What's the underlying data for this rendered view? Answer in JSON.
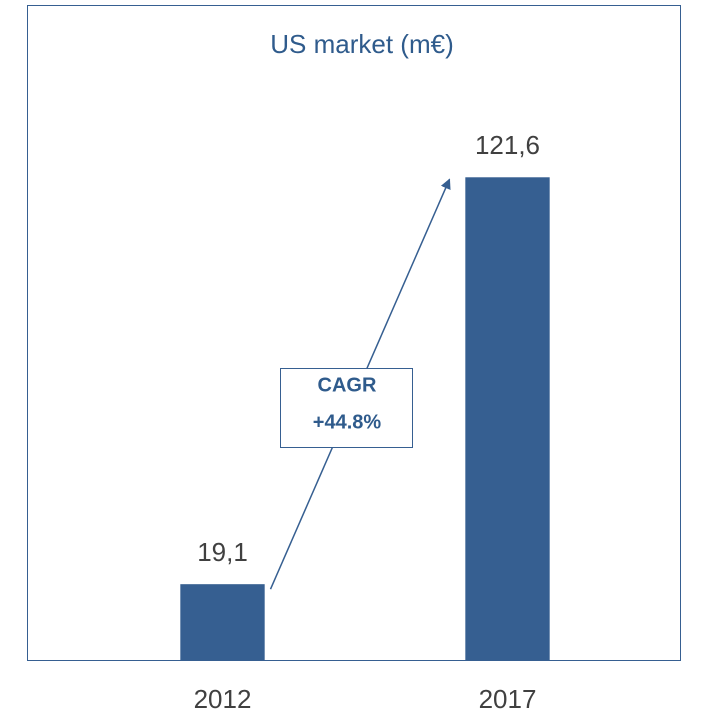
{
  "chart_data": {
    "type": "bar",
    "title": "US market (m€)",
    "categories": [
      "2012",
      "2017"
    ],
    "values": [
      19.1,
      121.6
    ],
    "value_labels": [
      "19,1",
      "121,6"
    ],
    "color": "#365f91",
    "ylim": [
      0,
      165
    ],
    "annotation": [
      "CAGR",
      "+44.8%"
    ]
  }
}
